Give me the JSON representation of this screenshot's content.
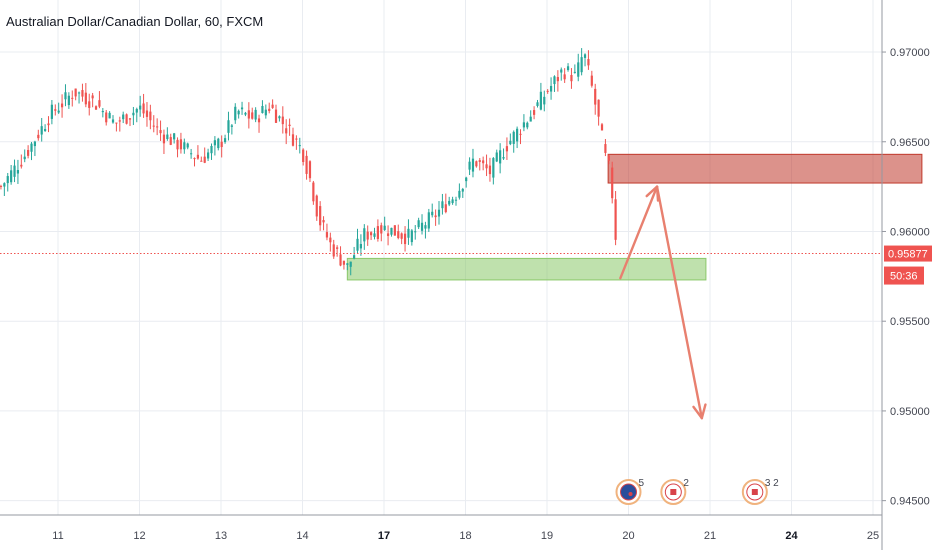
{
  "chart_data": {
    "type": "candlestick",
    "title": "Australian Dollar/Canadian Dollar, 60, FXCM",
    "price_axis": {
      "ticks": [
        0.945,
        0.95,
        0.955,
        0.96,
        0.965,
        0.97
      ],
      "tick_labels": [
        "0.94500",
        "0.95000",
        "0.95500",
        "0.96000",
        "0.96500",
        "0.97000"
      ],
      "range": [
        0.9442,
        0.9729
      ]
    },
    "time_axis": {
      "ticks": [
        {
          "label": "11",
          "day": 11,
          "bold": false
        },
        {
          "label": "12",
          "day": 12,
          "bold": false
        },
        {
          "label": "13",
          "day": 13,
          "bold": false
        },
        {
          "label": "14",
          "day": 14,
          "bold": false
        },
        {
          "label": "17",
          "day": 15,
          "bold": true
        },
        {
          "label": "18",
          "day": 16,
          "bold": false
        },
        {
          "label": "19",
          "day": 17,
          "bold": false
        },
        {
          "label": "20",
          "day": 18,
          "bold": false
        },
        {
          "label": "21",
          "day": 19,
          "bold": false
        },
        {
          "label": "24",
          "day": 20,
          "bold": true
        },
        {
          "label": "25",
          "day": 21,
          "bold": false
        }
      ]
    },
    "close_profile": [
      [
        10.3,
        0.9625
      ],
      [
        10.6,
        0.9643
      ],
      [
        10.9,
        0.9665
      ],
      [
        11.2,
        0.9678
      ],
      [
        11.45,
        0.9672
      ],
      [
        11.7,
        0.966
      ],
      [
        12.0,
        0.9669
      ],
      [
        12.25,
        0.9655
      ],
      [
        12.5,
        0.9648
      ],
      [
        12.75,
        0.964
      ],
      [
        13.0,
        0.965
      ],
      [
        13.2,
        0.9667
      ],
      [
        13.4,
        0.9663
      ],
      [
        13.6,
        0.967
      ],
      [
        13.8,
        0.9658
      ],
      [
        14.0,
        0.9645
      ],
      [
        14.1,
        0.9628
      ],
      [
        14.2,
        0.9607
      ],
      [
        14.35,
        0.9592
      ],
      [
        14.55,
        0.958
      ],
      [
        14.75,
        0.9598
      ],
      [
        15.0,
        0.9602
      ],
      [
        15.3,
        0.9597
      ],
      [
        15.6,
        0.9608
      ],
      [
        15.9,
        0.9622
      ],
      [
        16.1,
        0.964
      ],
      [
        16.3,
        0.9633
      ],
      [
        16.5,
        0.9648
      ],
      [
        16.8,
        0.9665
      ],
      [
        17.0,
        0.9678
      ],
      [
        17.2,
        0.969
      ],
      [
        17.35,
        0.9686
      ],
      [
        17.45,
        0.97
      ],
      [
        17.55,
        0.968
      ],
      [
        17.65,
        0.9658
      ],
      [
        17.72,
        0.964
      ],
      [
        17.78,
        0.9632
      ],
      [
        17.84,
        0.9598
      ],
      [
        17.88,
        0.9587
      ]
    ],
    "last_price": {
      "label": "0.95877",
      "value": 0.95877
    },
    "countdown": "50:36",
    "zones": [
      {
        "name": "resistance-zone",
        "x_from": 17.75,
        "x_to": 21.6,
        "price_from": 0.9627,
        "price_to": 0.9643,
        "color": "#c0392b"
      },
      {
        "name": "support-zone",
        "x_from": 14.55,
        "x_to": 18.95,
        "price_from": 0.9573,
        "price_to": 0.9585,
        "color": "#8bc86a"
      }
    ],
    "projection_path": [
      [
        17.9,
        0.9574
      ],
      [
        18.35,
        0.9625
      ],
      [
        18.9,
        0.9496
      ]
    ],
    "events": [
      {
        "name": "australia-event-icon",
        "day": 18.0,
        "count": "5"
      },
      {
        "name": "canada-event-icon-1",
        "day": 18.55,
        "count": "2"
      },
      {
        "name": "canada-event-icon-2",
        "day": 19.55,
        "count": "3 2"
      }
    ],
    "colors": {
      "up": "#26a69a",
      "down": "#ef5350",
      "last_price": "#ef5350",
      "grid": "#e9ecf1"
    }
  }
}
